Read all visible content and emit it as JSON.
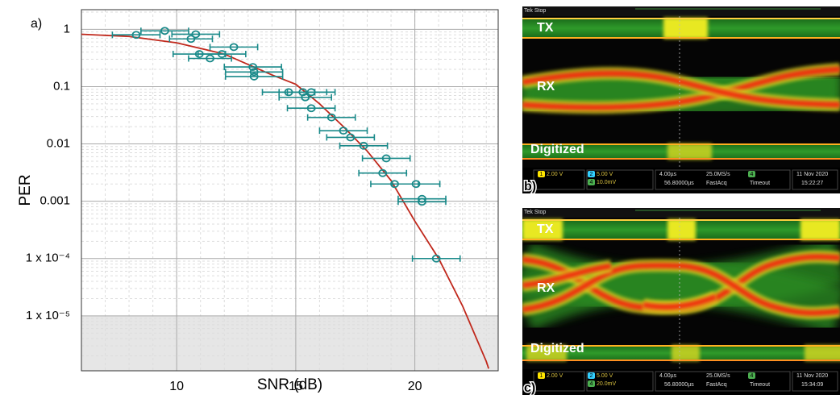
{
  "chart_data": {
    "type": "scatter",
    "panel_label": "a)",
    "x_label": "SNR (dB)",
    "y_label": "PER",
    "xlim": [
      6,
      23.5
    ],
    "xticks": [
      10,
      15,
      20
    ],
    "ylim": [
      1.1e-06,
      2.2
    ],
    "log_y": true,
    "yticks": [
      1,
      0.1,
      0.01,
      0.001,
      {
        "value": 0.0001,
        "label": "1 x 10⁻⁴"
      },
      {
        "value": 1e-05,
        "label": "1 x 10⁻⁵"
      }
    ],
    "grid": true,
    "shade_below": 1e-05,
    "series": [
      {
        "color": "#1a8a8a",
        "x": [
          8.3,
          9.5,
          10.6,
          10.8,
          10.95,
          11.4,
          11.9,
          12.4,
          13.2,
          13.25,
          13.25,
          14.7,
          15.3,
          15.4,
          15.65,
          15.65,
          16.5,
          17.0,
          17.3,
          17.85,
          18.8,
          18.65,
          19.15,
          20.05,
          20.3,
          20.3,
          20.9
        ],
        "values": [
          0.8,
          0.94,
          0.68,
          0.82,
          0.37,
          0.31,
          0.37,
          0.49,
          0.22,
          0.18,
          0.15,
          0.08,
          0.08,
          0.065,
          0.08,
          0.042,
          0.029,
          0.017,
          0.013,
          0.0093,
          0.0056,
          0.0031,
          0.002,
          0.002,
          0.0011,
          0.00098,
          0.0001
        ],
        "xerr": [
          1.0,
          1.0,
          0.9,
          1.0,
          1.1,
          0.9,
          1.0,
          1.0,
          1.2,
          1.2,
          1.2,
          1.1,
          1.0,
          1.1,
          1.0,
          1.0,
          1.0,
          1.0,
          1.0,
          1.0,
          1.0,
          1.0,
          1.0,
          1.0,
          1.0,
          1.0,
          1.0
        ]
      }
    ],
    "fit": {
      "color": "#c0281c",
      "x": [
        6,
        8,
        10,
        12,
        14,
        15,
        16,
        17,
        18,
        19,
        20,
        21,
        22,
        23,
        23.1
      ],
      "values": [
        0.82,
        0.75,
        0.58,
        0.37,
        0.16,
        0.11,
        0.05,
        0.02,
        0.0075,
        0.0023,
        0.00045,
        0.0001,
        1.5e-05,
        1.6e-06,
        1.2e-06
      ]
    }
  },
  "scope_panels": [
    {
      "label": "b)",
      "status": "Tek Stop",
      "traces": [
        "TX",
        "RX",
        "Digitized"
      ],
      "channels": [
        "1",
        "2",
        "4",
        "4"
      ],
      "readouts": [
        "2.00 V",
        "5.00 V",
        "10.0mV",
        "4.00µs",
        "56.80000µs",
        "25.0MS/s",
        "FastAcq",
        "Timeout",
        "11 Nov 2020",
        "15:22:27"
      ]
    },
    {
      "label": "c)",
      "status": "Tek Stop",
      "traces": [
        "TX",
        "RX",
        "Digitized"
      ],
      "channels": [
        "1",
        "2",
        "4",
        "4"
      ],
      "readouts": [
        "2.00 V",
        "5.00 V",
        "20.0mV",
        "4.00µs",
        "56.80000µs",
        "25.0MS/s",
        "FastAcq",
        "Timeout",
        "11 Nov 2020",
        "15:34:09"
      ]
    }
  ]
}
